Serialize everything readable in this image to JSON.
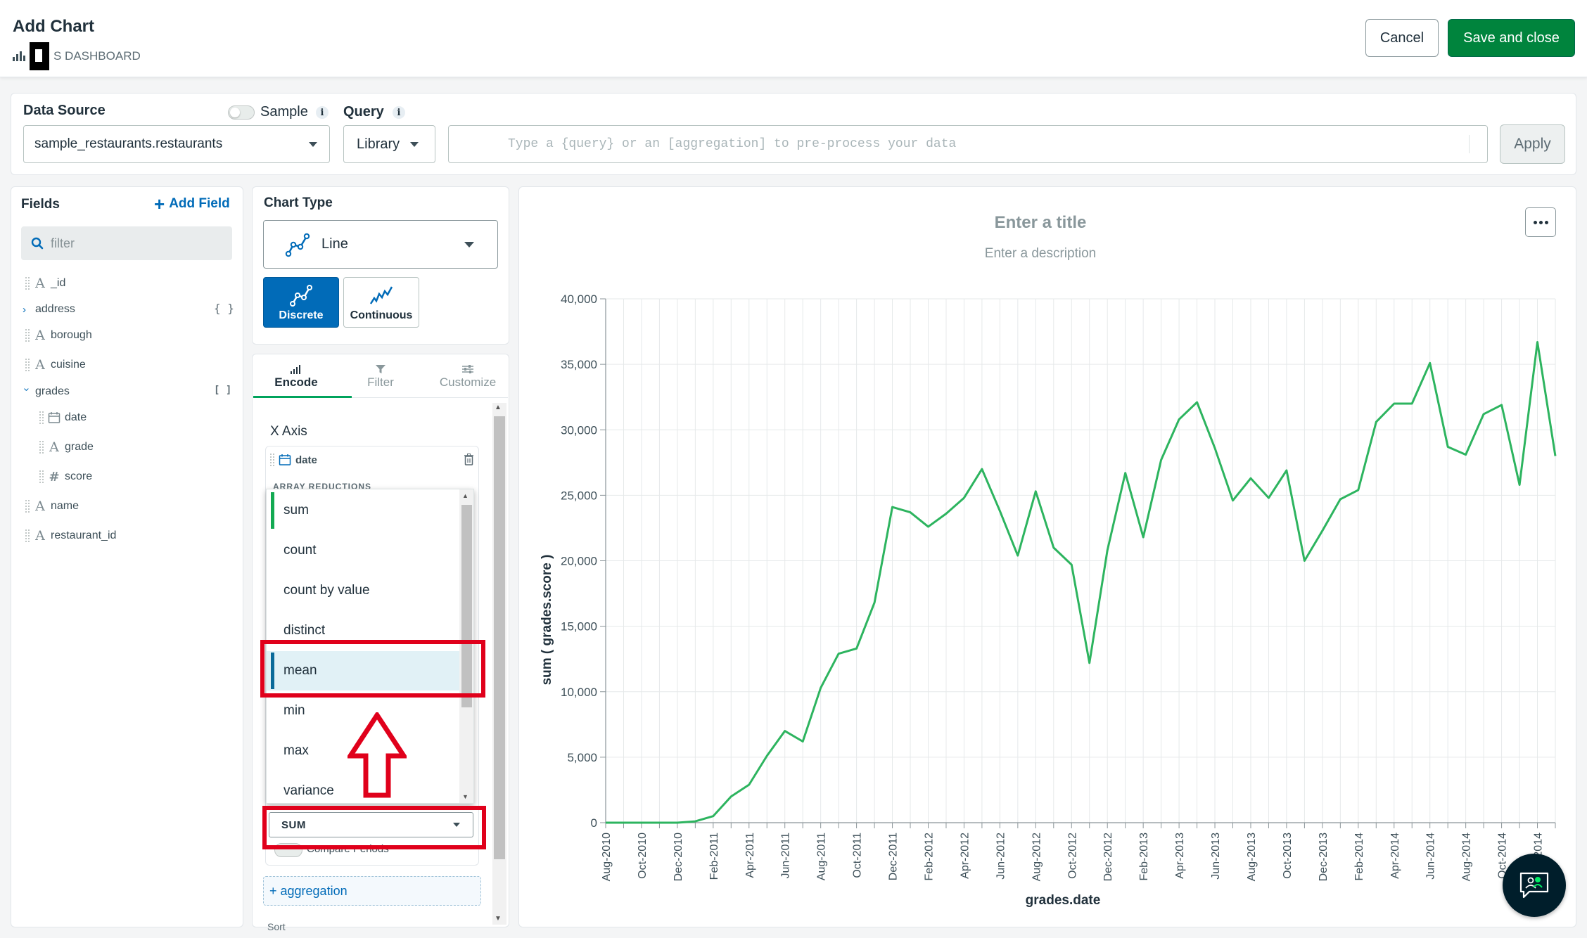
{
  "header": {
    "title": "Add Chart",
    "breadcrumb": "S DASHBOARD",
    "cancel_label": "Cancel",
    "save_label": "Save and close"
  },
  "data_source": {
    "label": "Data Source",
    "sample_label": "Sample",
    "sample_enabled": false,
    "selected": "sample_restaurants.restaurants",
    "query_label": "Query",
    "library_label": "Library",
    "query_placeholder": "Type a {query} or an [aggregation] to pre-process your data",
    "apply_label": "Apply"
  },
  "fields": {
    "title": "Fields",
    "add_field_label": "Add Field",
    "filter_placeholder": "filter",
    "items": [
      {
        "name": "_id",
        "type": "string-icon"
      },
      {
        "name": "address",
        "type": "object-icon",
        "brace": "{ }"
      },
      {
        "name": "borough",
        "type": "string-icon"
      },
      {
        "name": "cuisine",
        "type": "string-icon"
      },
      {
        "name": "grades",
        "type": "array-icon",
        "brace": "[ ]"
      },
      {
        "name": "date",
        "type": "date-icon"
      },
      {
        "name": "grade",
        "type": "string-icon"
      },
      {
        "name": "score",
        "type": "number-icon"
      },
      {
        "name": "name",
        "type": "string-icon"
      },
      {
        "name": "restaurant_id",
        "type": "string-icon"
      }
    ]
  },
  "chart_type": {
    "label": "Chart Type",
    "selected": "Line",
    "discrete_label": "Discrete",
    "continuous_label": "Continuous"
  },
  "encode": {
    "tabs": [
      {
        "label": "Encode",
        "active": true
      },
      {
        "label": "Filter",
        "active": false
      },
      {
        "label": "Customize",
        "active": false
      }
    ],
    "x_axis_label": "X Axis",
    "x_field": "date",
    "array_reductions_label": "ARRAY REDUCTIONS",
    "reduction_options": [
      "sum",
      "count",
      "count by value",
      "distinct",
      "mean",
      "min",
      "max",
      "variance"
    ],
    "reduction_selected": "SUM",
    "compare_periods_label": "Compare Periods",
    "add_aggregation_label": "+ aggregation",
    "cut_label": "Sort"
  },
  "chart": {
    "title_placeholder": "Enter a title",
    "description_placeholder": "Enter a description"
  },
  "colors": {
    "accent_green": "#00843d",
    "line_green": "#2db45f",
    "link_blue": "#016bb8",
    "annotation_red": "#e0001b"
  },
  "chart_data": {
    "type": "line",
    "xlabel": "grades.date",
    "ylabel": "sum ( grades.score )",
    "ylim": [
      0,
      40000
    ],
    "yticks": [
      "0",
      "5,000",
      "10,000",
      "15,000",
      "20,000",
      "25,000",
      "30,000",
      "35,000",
      "40,000"
    ],
    "tick_labels": [
      "Aug-2010",
      "Oct-2010",
      "Dec-2010",
      "Feb-2011",
      "Apr-2011",
      "Jun-2011",
      "Aug-2011",
      "Oct-2011",
      "Dec-2011",
      "Feb-2012",
      "Apr-2012",
      "Jun-2012",
      "Aug-2012",
      "Oct-2012",
      "Dec-2012",
      "Feb-2013",
      "Apr-2013",
      "Jun-2013",
      "Aug-2013",
      "Oct-2013",
      "Dec-2013",
      "Feb-2014",
      "Apr-2014",
      "Jun-2014",
      "Aug-2014",
      "Oct-2014",
      "Dec-2014"
    ],
    "x": [
      "2010-08",
      "2010-09",
      "2010-10",
      "2010-11",
      "2010-12",
      "2011-01",
      "2011-02",
      "2011-03",
      "2011-04",
      "2011-05",
      "2011-06",
      "2011-07",
      "2011-08",
      "2011-09",
      "2011-10",
      "2011-11",
      "2011-12",
      "2012-01",
      "2012-02",
      "2012-03",
      "2012-04",
      "2012-05",
      "2012-06",
      "2012-07",
      "2012-08",
      "2012-09",
      "2012-10",
      "2012-11",
      "2012-12",
      "2013-01",
      "2013-02",
      "2013-03",
      "2013-04",
      "2013-05",
      "2013-06",
      "2013-07",
      "2013-08",
      "2013-09",
      "2013-10",
      "2013-11",
      "2013-12",
      "2014-01",
      "2014-02",
      "2014-03",
      "2014-04",
      "2014-05",
      "2014-06",
      "2014-07",
      "2014-08",
      "2014-09",
      "2014-10",
      "2014-11",
      "2014-12",
      "2015-01"
    ],
    "grid": true,
    "series": [
      {
        "values": [
          0,
          0,
          0,
          0,
          0,
          100,
          500,
          2000,
          2900,
          5100,
          7000,
          6200,
          10300,
          12900,
          13300,
          16800,
          24100,
          23700,
          22600,
          23600,
          24800,
          27000,
          23800,
          20400,
          25300,
          21000,
          19700,
          12200,
          20800,
          26700,
          21800,
          27700,
          30800,
          32100,
          28600,
          24600,
          26300,
          24800,
          26900,
          20000,
          22300,
          24700,
          25400,
          30600,
          32000,
          32000,
          35100,
          28700,
          28100,
          31200,
          31900,
          25800,
          36700,
          28000
        ]
      }
    ]
  }
}
